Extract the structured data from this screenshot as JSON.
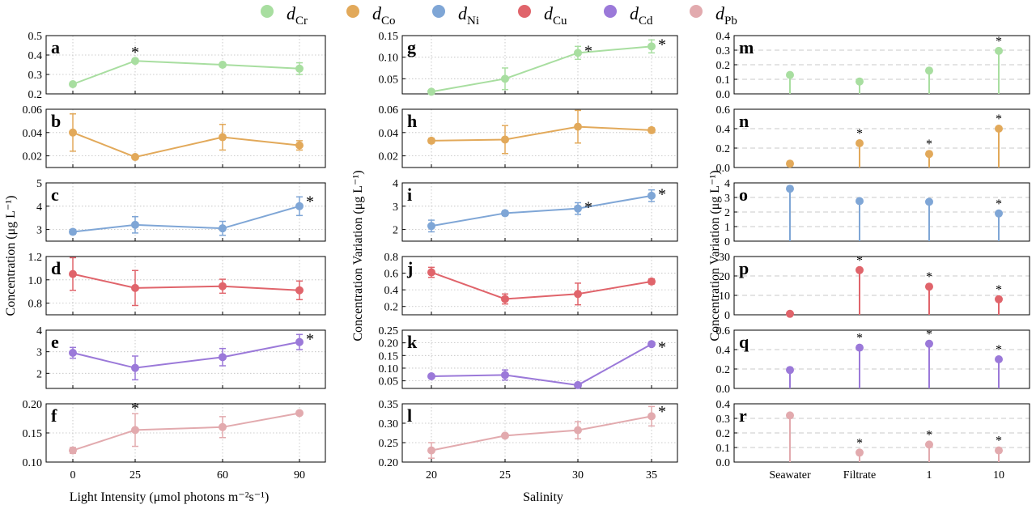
{
  "legend": [
    {
      "base": "d",
      "sub": "Cr",
      "color": "#a8dea0"
    },
    {
      "base": "d",
      "sub": "Co",
      "color": "#e2a95a"
    },
    {
      "base": "d",
      "sub": "Ni",
      "color": "#7fa6d6"
    },
    {
      "base": "d",
      "sub": "Cu",
      "color": "#e0646b"
    },
    {
      "base": "d",
      "sub": "Cd",
      "color": "#9b79d9"
    },
    {
      "base": "d",
      "sub": "Pb",
      "color": "#e2aaae"
    }
  ],
  "columns": [
    {
      "ylabel": "Concentration (μg L⁻¹)",
      "xlabel": "Light Intensity (μmol photons m⁻²s⁻¹)",
      "xticks": [
        "0",
        "25",
        "60",
        "90"
      ]
    },
    {
      "ylabel": "Concentration Variation (μg L⁻¹)",
      "xlabel": "Salinity",
      "xticks": [
        "20",
        "25",
        "30",
        "35"
      ]
    },
    {
      "ylabel": "Concentration Variation (μg L⁻¹)",
      "xlabel": "",
      "xticks": [
        "Seawater",
        "Filtrate",
        "1",
        "10"
      ]
    }
  ],
  "chart_data": [
    {
      "panel": "a",
      "type": "line",
      "series_name": "dCr",
      "x": [
        "0",
        "25",
        "60",
        "90"
      ],
      "values": [
        0.25,
        0.37,
        0.35,
        0.33
      ],
      "errors": [
        0.01,
        0.01,
        0.01,
        0.03
      ],
      "sig": [
        false,
        true,
        false,
        false
      ],
      "ylim": [
        0.2,
        0.5
      ],
      "yticks": [
        "0.2",
        "0.3",
        "0.4",
        "0.5"
      ],
      "grid": true
    },
    {
      "panel": "b",
      "type": "line",
      "series_name": "dCo",
      "x": [
        "0",
        "25",
        "60",
        "90"
      ],
      "values": [
        0.04,
        0.019,
        0.036,
        0.029
      ],
      "errors": [
        0.016,
        0.001,
        0.011,
        0.004
      ],
      "sig": [
        false,
        false,
        false,
        false
      ],
      "ylim": [
        0.01,
        0.06
      ],
      "yticks": [
        "0.02",
        "0.04",
        "0.06"
      ],
      "grid": true
    },
    {
      "panel": "c",
      "type": "line",
      "series_name": "dNi",
      "x": [
        "0",
        "25",
        "60",
        "90"
      ],
      "values": [
        2.9,
        3.2,
        3.05,
        4.0
      ],
      "errors": [
        0.1,
        0.35,
        0.3,
        0.4
      ],
      "sig": [
        false,
        false,
        false,
        true
      ],
      "ylim": [
        2.5,
        5
      ],
      "yticks": [
        "3",
        "4",
        "5"
      ],
      "grid": true
    },
    {
      "panel": "d",
      "type": "line",
      "series_name": "dCu",
      "x": [
        "0",
        "25",
        "60",
        "90"
      ],
      "values": [
        1.05,
        0.93,
        0.945,
        0.91
      ],
      "errors": [
        0.14,
        0.15,
        0.06,
        0.08
      ],
      "sig": [
        false,
        false,
        false,
        false
      ],
      "ylim": [
        0.7,
        1.2
      ],
      "yticks": [
        "0.8",
        "1.0",
        "1.2"
      ],
      "grid": true
    },
    {
      "panel": "e",
      "type": "line",
      "series_name": "dCd",
      "x": [
        "0",
        "25",
        "60",
        "90"
      ],
      "values": [
        2.95,
        2.25,
        2.75,
        3.45
      ],
      "errors": [
        0.25,
        0.55,
        0.4,
        0.35
      ],
      "sig": [
        false,
        false,
        false,
        true
      ],
      "ylim": [
        1.3,
        4
      ],
      "yticks": [
        "2",
        "3",
        "4"
      ],
      "grid": true
    },
    {
      "panel": "f",
      "type": "line",
      "series_name": "dPb",
      "x": [
        "0",
        "25",
        "60",
        "90"
      ],
      "values": [
        0.12,
        0.155,
        0.16,
        0.184
      ],
      "errors": [
        0.005,
        0.028,
        0.018,
        0.002
      ],
      "sig": [
        false,
        true,
        false,
        false
      ],
      "ylim": [
        0.1,
        0.2
      ],
      "yticks": [
        "0.10",
        "0.15",
        "0.20"
      ],
      "grid": true
    },
    {
      "panel": "g",
      "type": "line",
      "series_name": "dCr",
      "x": [
        "20",
        "25",
        "30",
        "35"
      ],
      "values": [
        0.02,
        0.05,
        0.11,
        0.125
      ],
      "errors": [
        0.003,
        0.025,
        0.015,
        0.015
      ],
      "sig": [
        false,
        false,
        true,
        true
      ],
      "ylim": [
        0.015,
        0.15
      ],
      "yticks": [
        "0.05",
        "0.10",
        "0.15"
      ],
      "grid": true
    },
    {
      "panel": "h",
      "type": "line",
      "series_name": "dCo",
      "x": [
        "20",
        "25",
        "30",
        "35"
      ],
      "values": [
        0.033,
        0.034,
        0.045,
        0.042
      ],
      "errors": [
        0.002,
        0.012,
        0.014,
        0.002
      ],
      "sig": [
        false,
        false,
        false,
        false
      ],
      "ylim": [
        0.01,
        0.06
      ],
      "yticks": [
        "0.02",
        "0.04",
        "0.06"
      ],
      "grid": true
    },
    {
      "panel": "i",
      "type": "line",
      "series_name": "dNi",
      "x": [
        "20",
        "25",
        "30",
        "35"
      ],
      "values": [
        2.15,
        2.7,
        2.9,
        3.45
      ],
      "errors": [
        0.25,
        0.1,
        0.25,
        0.25
      ],
      "sig": [
        false,
        false,
        true,
        true
      ],
      "ylim": [
        1.5,
        4
      ],
      "yticks": [
        "2",
        "3",
        "4"
      ],
      "grid": true
    },
    {
      "panel": "j",
      "type": "line",
      "series_name": "dCu",
      "x": [
        "20",
        "25",
        "30",
        "35"
      ],
      "values": [
        0.61,
        0.29,
        0.35,
        0.5
      ],
      "errors": [
        0.06,
        0.06,
        0.13,
        0.03
      ],
      "sig": [
        false,
        false,
        false,
        false
      ],
      "ylim": [
        0.1,
        0.8
      ],
      "yticks": [
        "0.2",
        "0.4",
        "0.6",
        "0.8"
      ],
      "grid": true
    },
    {
      "panel": "k",
      "type": "line",
      "series_name": "dCd",
      "x": [
        "20",
        "25",
        "30",
        "35"
      ],
      "values": [
        0.068,
        0.073,
        0.033,
        0.195
      ],
      "errors": [
        0.005,
        0.02,
        0.003,
        0.005
      ],
      "sig": [
        false,
        false,
        false,
        true
      ],
      "ylim": [
        0.02,
        0.25
      ],
      "yticks": [
        "0.05",
        "0.10",
        "0.15",
        "0.20",
        "0.25"
      ],
      "grid": true
    },
    {
      "panel": "l",
      "type": "line",
      "series_name": "dPb",
      "x": [
        "20",
        "25",
        "30",
        "35"
      ],
      "values": [
        0.23,
        0.268,
        0.282,
        0.318
      ],
      "errors": [
        0.02,
        0.005,
        0.022,
        0.025
      ],
      "sig": [
        false,
        false,
        false,
        true
      ],
      "ylim": [
        0.2,
        0.35
      ],
      "yticks": [
        "0.20",
        "0.25",
        "0.30",
        "0.35"
      ],
      "grid": true
    },
    {
      "panel": "m",
      "type": "lollipop",
      "series_name": "dCr",
      "x": [
        "Seawater",
        "Filtrate",
        "1",
        "10"
      ],
      "values": [
        0.13,
        0.085,
        0.16,
        0.295
      ],
      "sig": [
        false,
        false,
        false,
        true
      ],
      "ylim": [
        0,
        0.4
      ],
      "yticks": [
        "0.0",
        "0.1",
        "0.2",
        "0.3",
        "0.4"
      ],
      "grid": "dashed-horizontal"
    },
    {
      "panel": "n",
      "type": "lollipop",
      "series_name": "dCo",
      "x": [
        "Seawater",
        "Filtrate",
        "1",
        "10"
      ],
      "values": [
        0.04,
        0.25,
        0.14,
        0.4
      ],
      "sig": [
        false,
        true,
        true,
        true
      ],
      "ylim": [
        0,
        0.6
      ],
      "yticks": [
        "0.0",
        "0.2",
        "0.4",
        "0.6"
      ],
      "grid": "dashed-horizontal"
    },
    {
      "panel": "o",
      "type": "lollipop",
      "series_name": "dNi",
      "x": [
        "Seawater",
        "Filtrate",
        "1",
        "10"
      ],
      "values": [
        3.6,
        2.75,
        2.7,
        1.9
      ],
      "sig": [
        false,
        false,
        false,
        true
      ],
      "ylim": [
        0,
        4
      ],
      "yticks": [
        "0",
        "1",
        "2",
        "3",
        "4"
      ],
      "grid": "dashed-horizontal"
    },
    {
      "panel": "p",
      "type": "lollipop",
      "series_name": "dCu",
      "x": [
        "Seawater",
        "Filtrate",
        "1",
        "10"
      ],
      "values": [
        0.5,
        23,
        14.5,
        8
      ],
      "sig": [
        false,
        true,
        true,
        true
      ],
      "ylim": [
        0,
        30
      ],
      "yticks": [
        "0",
        "10",
        "20",
        "30"
      ],
      "grid": "dashed-horizontal"
    },
    {
      "panel": "q",
      "type": "lollipop",
      "series_name": "dCd",
      "x": [
        "Seawater",
        "Filtrate",
        "1",
        "10"
      ],
      "values": [
        0.19,
        0.42,
        0.46,
        0.3
      ],
      "sig": [
        false,
        true,
        true,
        true
      ],
      "ylim": [
        0,
        0.6
      ],
      "yticks": [
        "0.0",
        "0.2",
        "0.4",
        "0.6"
      ],
      "grid": "dashed-horizontal"
    },
    {
      "panel": "r",
      "type": "lollipop",
      "series_name": "dPb",
      "x": [
        "Seawater",
        "Filtrate",
        "1",
        "10"
      ],
      "values": [
        0.32,
        0.065,
        0.12,
        0.08
      ],
      "sig": [
        false,
        true,
        true,
        true
      ],
      "ylim": [
        0,
        0.4
      ],
      "yticks": [
        "0.0",
        "0.1",
        "0.2",
        "0.3",
        "0.4"
      ],
      "grid": "dashed-horizontal"
    }
  ]
}
